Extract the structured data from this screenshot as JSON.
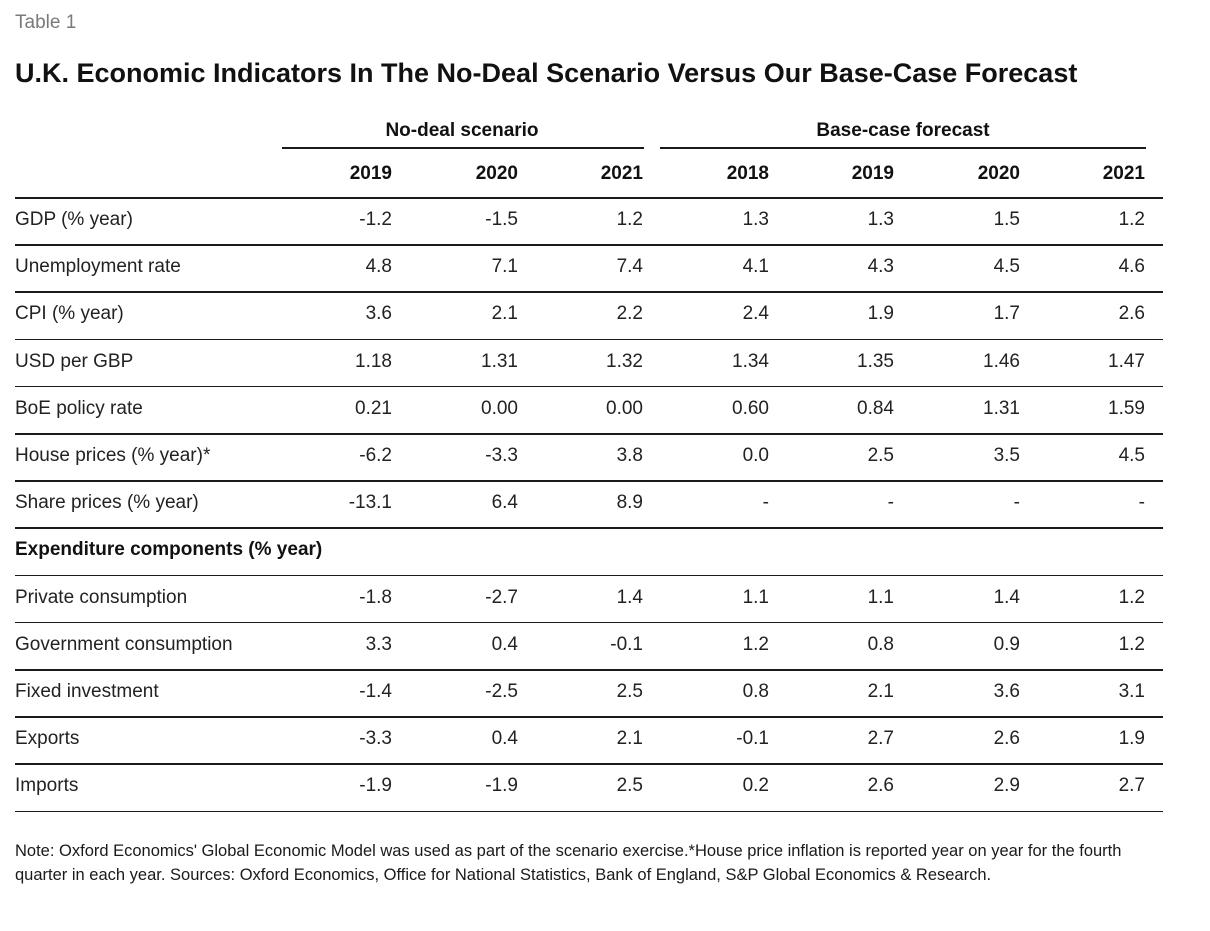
{
  "table_label": "Table 1",
  "title": "U.K. Economic Indicators In The No-Deal Scenario Versus Our Base-Case Forecast",
  "groups": {
    "no_deal": "No-deal scenario",
    "base_case": "Base-case forecast"
  },
  "years": [
    "2019",
    "2020",
    "2021",
    "2018",
    "2019",
    "2020",
    "2021"
  ],
  "rows": [
    {
      "label": "GDP (% year)",
      "values": [
        "-1.2",
        "-1.5",
        "1.2",
        "1.3",
        "1.3",
        "1.5",
        "1.2"
      ]
    },
    {
      "label": "Unemployment rate",
      "values": [
        "4.8",
        "7.1",
        "7.4",
        "4.1",
        "4.3",
        "4.5",
        "4.6"
      ]
    },
    {
      "label": "CPI (% year)",
      "values": [
        "3.6",
        "2.1",
        "2.2",
        "2.4",
        "1.9",
        "1.7",
        "2.6"
      ]
    },
    {
      "label": "USD per GBP",
      "values": [
        "1.18",
        "1.31",
        "1.32",
        "1.34",
        "1.35",
        "1.46",
        "1.47"
      ]
    },
    {
      "label": "BoE policy rate",
      "values": [
        "0.21",
        "0.00",
        "0.00",
        "0.60",
        "0.84",
        "1.31",
        "1.59"
      ]
    },
    {
      "label": "House prices (% year)*",
      "values": [
        "-6.2",
        "-3.3",
        "3.8",
        "0.0",
        "2.5",
        "3.5",
        "4.5"
      ]
    },
    {
      "label": "Share prices (% year)",
      "values": [
        "-13.1",
        "6.4",
        "8.9",
        "-",
        "-",
        "-",
        "-"
      ]
    }
  ],
  "section_label": "Expenditure components (% year)",
  "expenditure_rows": [
    {
      "label": "Private consumption",
      "values": [
        "-1.8",
        "-2.7",
        "1.4",
        "1.1",
        "1.1",
        "1.4",
        "1.2"
      ]
    },
    {
      "label": "Government consumption",
      "values": [
        "3.3",
        "0.4",
        "-0.1",
        "1.2",
        "0.8",
        "0.9",
        "1.2"
      ]
    },
    {
      "label": "Fixed investment",
      "values": [
        "-1.4",
        "-2.5",
        "2.5",
        "0.8",
        "2.1",
        "3.6",
        "3.1"
      ]
    },
    {
      "label": "Exports",
      "values": [
        "-3.3",
        "0.4",
        "2.1",
        "-0.1",
        "2.7",
        "2.6",
        "1.9"
      ]
    },
    {
      "label": "Imports",
      "values": [
        "-1.9",
        "-1.9",
        "2.5",
        "0.2",
        "2.6",
        "2.9",
        "2.7"
      ]
    }
  ],
  "note": "Note: Oxford Economics' Global Economic Model was used as part of the scenario exercise.*House price inflation is reported year on year for the fourth quarter in each year. Sources: Oxford Economics, Office for National Statistics, Bank of England, S&P Global Economics & Research."
}
